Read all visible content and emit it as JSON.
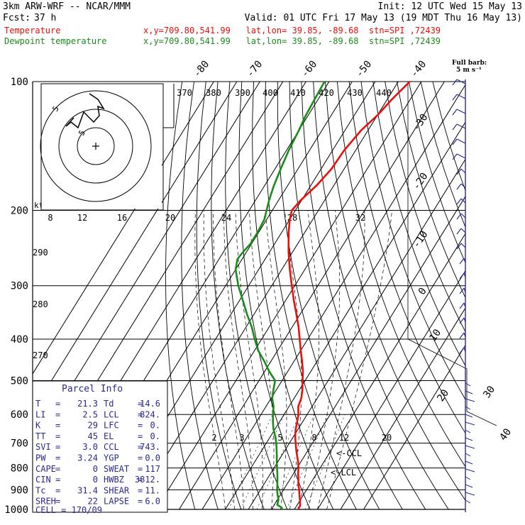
{
  "header": {
    "model": "3km ARW-WRF -- NCAR/MMM",
    "init": "Init: 12 UTC Wed 15 May 13",
    "fcst_label": "Fcst:",
    "fcst_value": "37 h",
    "valid": "Valid: 01 UTC Fri 17 May 13 (19 MDT Thu 16 May 13)",
    "temp_label": "Temperature",
    "temp_info": "x,y=709.80,541.99   lat,lon= 39.85, -89.68  stn=SPI ,72439",
    "dew_label": "Dewpoint temperature",
    "dew_info": "x,y=709.80,541.99   lat,lon= 39.85, -89.68  stn=SPI ,72439"
  },
  "barb_key": {
    "title": "Full barb:",
    "value": "5 m s⁻¹"
  },
  "hodograph": {
    "kts_label": "kts",
    "ring_labels": [
      "5",
      "5"
    ]
  },
  "parcel_info": {
    "title": "Parcel Info",
    "rows": [
      {
        "k1": "T",
        "v1": "21.3",
        "k2": "Td",
        "v2": "14.6"
      },
      {
        "k1": "LI",
        "v1": "2.5",
        "k2": "LCL",
        "v2": "824."
      },
      {
        "k1": "K",
        "v1": "29",
        "k2": "LFC",
        "v2": "0."
      },
      {
        "k1": "TT",
        "v1": "45",
        "k2": "EL",
        "v2": "0."
      },
      {
        "k1": "SVI",
        "v1": "3.0",
        "k2": "CCL",
        "v2": "743."
      },
      {
        "k1": "PW",
        "v1": "3.24",
        "k2": "YGP",
        "v2": "0.0"
      },
      {
        "k1": "CAPE",
        "v1": "0",
        "k2": "SWEAT",
        "v2": "117"
      },
      {
        "k1": "CIN",
        "v1": "0",
        "k2": "HWBZ",
        "v2": "3812."
      },
      {
        "k1": "Tc",
        "v1": "31.4",
        "k2": "SHEAR",
        "v2": "11."
      },
      {
        "k1": "SREH",
        "v1": "22",
        "k2": "LAPSE",
        "v2": "6.0"
      }
    ],
    "cell": "CELL = 170/09"
  },
  "annotations": {
    "ccl": "<-CCL",
    "lcl": "<-LCL"
  },
  "colors": {
    "temperature": "#e8100c",
    "dewpoint": "#1a8c1a",
    "wind": "#2a2a90",
    "grid": "#000000",
    "header_red": "#e8100c",
    "header_green": "#1a8c1a"
  },
  "chart_data": {
    "type": "line",
    "pressure_ticks": [
      100,
      200,
      300,
      400,
      500,
      600,
      700,
      800,
      900,
      1000
    ],
    "isotherm_labels_top": [
      -80,
      -70,
      -60,
      -50,
      -40
    ],
    "isotherm_labels_right": [
      -30,
      -20,
      -10,
      0,
      10,
      20,
      30,
      40
    ],
    "theta_labels": [
      370,
      380,
      390,
      400,
      410,
      420,
      430,
      440
    ],
    "mixing_ratio_labels": [
      2,
      3,
      5,
      8,
      12,
      20
    ],
    "hodo_speed_labels": [
      8,
      12,
      16,
      20,
      24,
      28,
      32
    ],
    "left_labels": [
      290,
      280,
      270
    ],
    "series": [
      {
        "name": "Temperature",
        "pressure": [
          995,
          985,
          975,
          950,
          925,
          900,
          875,
          850,
          825,
          800,
          775,
          750,
          725,
          700,
          675,
          650,
          625,
          600,
          575,
          550,
          525,
          500,
          475,
          450,
          425,
          400,
          375,
          350,
          325,
          300,
          275,
          250,
          225,
          210,
          200,
          190,
          175,
          160,
          145,
          130,
          120,
          110,
          100
        ],
        "values": [
          21.3,
          21.6,
          21.2,
          19.8,
          18.3,
          16.8,
          15.0,
          13.6,
          12.0,
          10.6,
          8.9,
          6.8,
          4.7,
          2.7,
          0.7,
          -1.0,
          -2.3,
          -3.8,
          -6.0,
          -6.9,
          -8.7,
          -11.1,
          -13.5,
          -16.6,
          -20.0,
          -23.5,
          -27.2,
          -31.6,
          -36.4,
          -41.3,
          -46.5,
          -51.8,
          -57.0,
          -60.0,
          -61.5,
          -60.5,
          -57.5,
          -55.5,
          -55.0,
          -53.0,
          -50.0,
          -48.0,
          -45.0
        ]
      },
      {
        "name": "Dewpoint temperature",
        "pressure": [
          995,
          985,
          975,
          950,
          925,
          900,
          875,
          850,
          825,
          800,
          775,
          750,
          725,
          700,
          675,
          650,
          625,
          600,
          575,
          550,
          525,
          500,
          475,
          450,
          425,
          400,
          375,
          350,
          325,
          300,
          275,
          260,
          250,
          240,
          225,
          210,
          200,
          190,
          175,
          160,
          145,
          130,
          120,
          110,
          100
        ],
        "values": [
          14.6,
          13.0,
          11.3,
          10.5,
          8.8,
          7.2,
          5.9,
          4.5,
          3.0,
          1.3,
          -0.4,
          -2.0,
          -3.8,
          -5.7,
          -7.9,
          -10.6,
          -12.8,
          -14.8,
          -16.7,
          -19.5,
          -21.3,
          -23.0,
          -28.2,
          -33.0,
          -38.5,
          -43.0,
          -47.5,
          -53.0,
          -58.5,
          -64.5,
          -70.0,
          -72.0,
          -71.5,
          -70.5,
          -70.5,
          -71.0,
          -72.5,
          -74.0,
          -76.0,
          -77.5,
          -79.0,
          -80.0,
          -81.0,
          -81.5,
          -82.0
        ]
      }
    ]
  }
}
